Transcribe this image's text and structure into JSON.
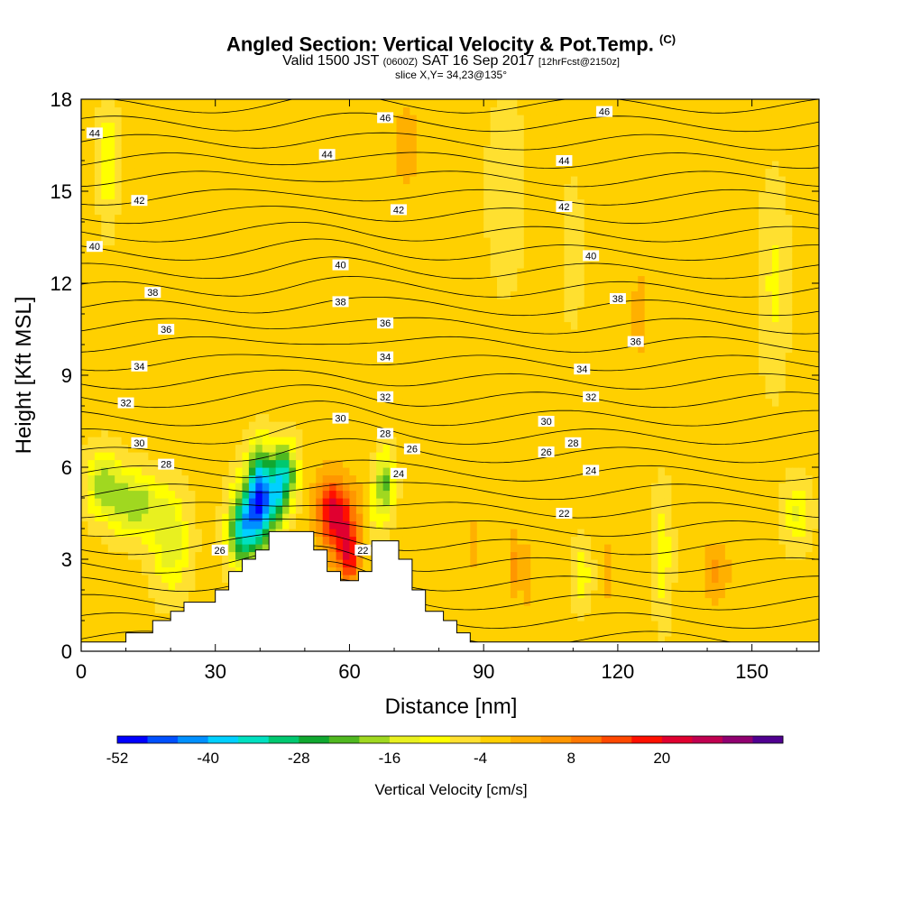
{
  "title": {
    "main": "Angled Section: Vertical Velocity & Pot.Temp.",
    "main_unit": "(C)",
    "valid_pre": "Valid 1500 JST",
    "valid_z": "(0600Z)",
    "valid_date": "SAT 16 Sep 2017",
    "forecast": "[12hrFcst@2150z]",
    "slice": "slice X,Y= 34,23@135°"
  },
  "chart_data": {
    "type": "heatmap",
    "xlabel": "Distance [nm]",
    "ylabel": "Height [Kft MSL]",
    "xlim": [
      0,
      165
    ],
    "ylim": [
      0,
      18
    ],
    "x_ticks": [
      0,
      30,
      60,
      90,
      120,
      150
    ],
    "y_ticks": [
      0,
      3,
      6,
      9,
      12,
      15,
      18
    ],
    "colorbar": {
      "label": "Vertical Velocity [cm/s]",
      "tick_labels": [
        -52,
        -40,
        -28,
        -16,
        -4,
        8,
        20
      ],
      "min": -52,
      "step": 4,
      "colors": [
        "#0000ff",
        "#0050ff",
        "#0090ff",
        "#00d0ff",
        "#00e0c0",
        "#00c870",
        "#10a830",
        "#50b820",
        "#a0d820",
        "#e8f020",
        "#ffff00",
        "#ffe030",
        "#ffd000",
        "#ffb000",
        "#ff9600",
        "#ff7800",
        "#ff4800",
        "#ff1000",
        "#e00030",
        "#c00050",
        "#900070",
        "#500090"
      ]
    },
    "pot_temp_contours": {
      "labels": [
        {
          "text": "46",
          "x": 68,
          "z": 17.4
        },
        {
          "text": "46",
          "x": 117,
          "z": 17.6
        },
        {
          "text": "44",
          "x": 3,
          "z": 16.9
        },
        {
          "text": "44",
          "x": 55,
          "z": 16.2
        },
        {
          "text": "44",
          "x": 108,
          "z": 16.0
        },
        {
          "text": "42",
          "x": 13,
          "z": 14.7
        },
        {
          "text": "42",
          "x": 71,
          "z": 14.4
        },
        {
          "text": "42",
          "x": 108,
          "z": 14.5
        },
        {
          "text": "40",
          "x": 3,
          "z": 13.2
        },
        {
          "text": "40",
          "x": 58,
          "z": 12.6
        },
        {
          "text": "40",
          "x": 114,
          "z": 12.9
        },
        {
          "text": "38",
          "x": 16,
          "z": 11.7
        },
        {
          "text": "38",
          "x": 58,
          "z": 11.4
        },
        {
          "text": "38",
          "x": 120,
          "z": 11.5
        },
        {
          "text": "36",
          "x": 19,
          "z": 10.5
        },
        {
          "text": "36",
          "x": 68,
          "z": 10.7
        },
        {
          "text": "36",
          "x": 124,
          "z": 10.1
        },
        {
          "text": "34",
          "x": 13,
          "z": 9.3
        },
        {
          "text": "34",
          "x": 68,
          "z": 9.6
        },
        {
          "text": "34",
          "x": 112,
          "z": 9.2
        },
        {
          "text": "32",
          "x": 10,
          "z": 8.1
        },
        {
          "text": "32",
          "x": 68,
          "z": 8.3
        },
        {
          "text": "32",
          "x": 114,
          "z": 8.3
        },
        {
          "text": "30",
          "x": 13,
          "z": 6.8
        },
        {
          "text": "30",
          "x": 58,
          "z": 7.6
        },
        {
          "text": "30",
          "x": 104,
          "z": 7.5
        },
        {
          "text": "28",
          "x": 19,
          "z": 6.1
        },
        {
          "text": "28",
          "x": 68,
          "z": 7.1
        },
        {
          "text": "28",
          "x": 110,
          "z": 6.8
        },
        {
          "text": "26",
          "x": 31,
          "z": 3.3
        },
        {
          "text": "26",
          "x": 74,
          "z": 6.6
        },
        {
          "text": "26",
          "x": 104,
          "z": 6.5
        },
        {
          "text": "24",
          "x": 71,
          "z": 5.8
        },
        {
          "text": "24",
          "x": 114,
          "z": 5.9
        },
        {
          "text": "22",
          "x": 63,
          "z": 3.3
        },
        {
          "text": "22",
          "x": 108,
          "z": 4.5
        }
      ]
    },
    "terrain_kft": [
      [
        0,
        0.3
      ],
      [
        10,
        0.3
      ],
      [
        10,
        0.6
      ],
      [
        16,
        0.6
      ],
      [
        16,
        1.0
      ],
      [
        20,
        1.0
      ],
      [
        20,
        1.3
      ],
      [
        23,
        1.3
      ],
      [
        23,
        1.6
      ],
      [
        30,
        1.6
      ],
      [
        30,
        2.0
      ],
      [
        33,
        2.0
      ],
      [
        33,
        2.6
      ],
      [
        36,
        2.6
      ],
      [
        36,
        3.0
      ],
      [
        39,
        3.0
      ],
      [
        39,
        3.3
      ],
      [
        42,
        3.3
      ],
      [
        42,
        3.9
      ],
      [
        52,
        3.9
      ],
      [
        52,
        3.3
      ],
      [
        55,
        3.3
      ],
      [
        55,
        2.6
      ],
      [
        58,
        2.6
      ],
      [
        58,
        2.3
      ],
      [
        62,
        2.3
      ],
      [
        62,
        2.6
      ],
      [
        65,
        2.6
      ],
      [
        65,
        3.6
      ],
      [
        71,
        3.6
      ],
      [
        71,
        3.0
      ],
      [
        74,
        3.0
      ],
      [
        74,
        2.0
      ],
      [
        77,
        2.0
      ],
      [
        77,
        1.3
      ],
      [
        81,
        1.3
      ],
      [
        81,
        1.0
      ],
      [
        84,
        1.0
      ],
      [
        84,
        0.6
      ],
      [
        87,
        0.6
      ],
      [
        87,
        0.3
      ],
      [
        165,
        0.3
      ]
    ]
  }
}
